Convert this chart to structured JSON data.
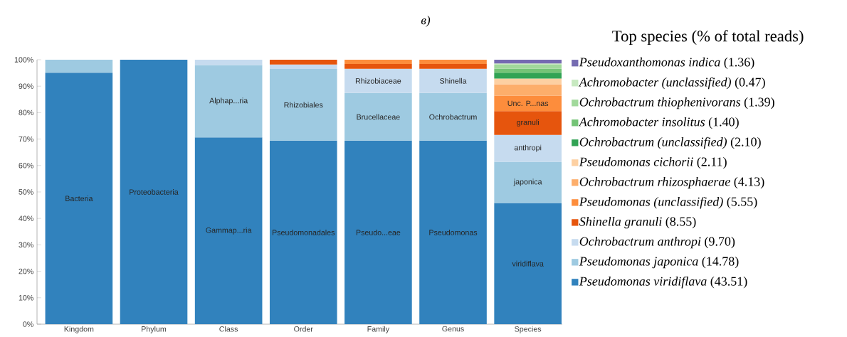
{
  "chart_data": {
    "type": "bar",
    "stacked": true,
    "title": "в)",
    "legend_title": "Top species (% of total reads)",
    "legend": "right",
    "categories": [
      "Kingdom",
      "Phylum",
      "Class",
      "Order",
      "Family",
      "Genus",
      "Species"
    ],
    "ylim": [
      0,
      100
    ],
    "yticks": [
      {
        "value": 0,
        "label": "0%"
      },
      {
        "value": 10,
        "label": "10%"
      },
      {
        "value": 20,
        "label": "20%"
      },
      {
        "value": 30,
        "label": "30%"
      },
      {
        "value": 40,
        "label": "40%"
      },
      {
        "value": 50,
        "label": "50%"
      },
      {
        "value": 60,
        "label": "60%"
      },
      {
        "value": 70,
        "label": "70%"
      },
      {
        "value": 80,
        "label": "80%"
      },
      {
        "value": 90,
        "label": "90%"
      },
      {
        "value": 100,
        "label": "100%"
      }
    ],
    "series": [
      {
        "name": "*Pseudomonas viridiflava* (43.51)",
        "color": "#3182bd",
        "values": [
          95.1,
          100,
          70.6,
          69.4,
          69.4,
          69.4,
          45.8
        ],
        "value_labels": [
          "Bacteria",
          "Proteobacteria",
          "Gammap...ria",
          "Pseudomonadales",
          "Pseudo...eae",
          "Pseudomonas",
          "viridiflava"
        ]
      },
      {
        "name": "*Pseudomonas japonica* (14.78)",
        "color": "#9ecae1",
        "values": [
          4.9,
          null,
          27.4,
          27.1,
          18.0,
          18.0,
          15.6
        ],
        "value_labels": [
          null,
          null,
          "Alphap...ria",
          "Rhizobiales",
          "Brucellaceae",
          "Ochrobactrum",
          "japonica"
        ]
      },
      {
        "name": "*Ochrobactrum anthropi* (9.70)",
        "color": "#c6dbef",
        "values": [
          null,
          null,
          2.0,
          1.7,
          9.2,
          9.2,
          10.2
        ],
        "value_labels": [
          null,
          null,
          null,
          null,
          "Rhizobiaceae",
          "Shinella",
          "anthropi"
        ]
      },
      {
        "name": "*Shinella granuli* (8.55)",
        "color": "#e6550d",
        "values": [
          null,
          null,
          null,
          1.8,
          1.8,
          1.8,
          9.0
        ],
        "value_labels": [
          null,
          null,
          null,
          null,
          null,
          null,
          "granuli"
        ]
      },
      {
        "name": "*Pseudomonas (unclassified)* (5.55)",
        "color": "#fd8d3c",
        "values": [
          null,
          null,
          null,
          null,
          1.6,
          1.6,
          5.8
        ],
        "value_labels": [
          null,
          null,
          null,
          null,
          null,
          null,
          "Unc. P...nas"
        ]
      },
      {
        "name": "*Ochrobactrum rhizosphaerae* (4.13)",
        "color": "#fdae6b",
        "values": [
          null,
          null,
          null,
          null,
          null,
          null,
          4.3
        ]
      },
      {
        "name": "*Pseudomonas cichorii* (2.11)",
        "color": "#fdd0a2",
        "values": [
          null,
          null,
          null,
          null,
          null,
          null,
          2.2
        ]
      },
      {
        "name": "*Ochrobactrum (unclassified)* (2.10)",
        "color": "#31a354",
        "values": [
          null,
          null,
          null,
          null,
          null,
          null,
          2.2
        ]
      },
      {
        "name": "*Achromobacter insolitus* (1.40)",
        "color": "#74c476",
        "values": [
          null,
          null,
          null,
          null,
          null,
          null,
          1.5
        ]
      },
      {
        "name": "*Ochrobactrum thiophenivorans* (1.39)",
        "color": "#a1d99b",
        "values": [
          null,
          null,
          null,
          null,
          null,
          null,
          1.5
        ]
      },
      {
        "name": "*Achromobacter (unclassified)* (0.47)",
        "color": "#c7e9c0",
        "values": [
          null,
          null,
          null,
          null,
          null,
          null,
          0.5
        ]
      },
      {
        "name": "*Pseudoxanthomonas indica* (1.36)",
        "color": "#756bb1",
        "values": [
          null,
          null,
          null,
          null,
          null,
          null,
          1.4
        ]
      }
    ]
  }
}
